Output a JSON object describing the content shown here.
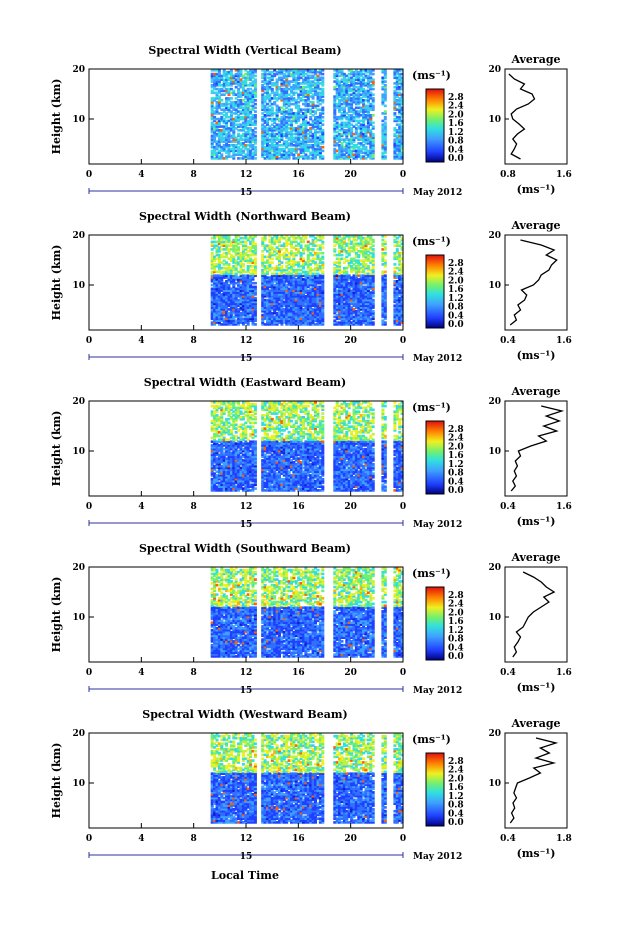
{
  "figure": {
    "xlabel": "Local Time",
    "date_label": "May 2012",
    "day_label": "15",
    "colorbar_unit": "(ms⁻¹)",
    "colorbar_ticks": [
      "0.0",
      "0.4",
      "0.8",
      "1.2",
      "1.6",
      "2.0",
      "2.4",
      "2.8"
    ],
    "avg_title": "Average",
    "avg_unit": "(ms⁻¹)",
    "y_ticks": [
      "10",
      "20"
    ],
    "x_ticks": [
      "0",
      "4",
      "8",
      "12",
      "16",
      "20",
      "0"
    ],
    "ylabel": "Height (km)"
  },
  "chart_data": [
    {
      "type": "heatmap",
      "title": "Spectral Width (Vertical Beam)",
      "ylabel": "Height (km)",
      "xlabel": "Local Time",
      "x_range": [
        0,
        24
      ],
      "y_range": [
        1,
        20
      ],
      "colorbar_range": [
        0.0,
        2.8
      ],
      "data_time_range": [
        9.3,
        24
      ],
      "gaps_hours": [
        [
          12.8,
          13.1
        ],
        [
          18.0,
          18.5
        ],
        [
          21.8,
          22.3
        ],
        [
          22.8,
          23.1
        ]
      ],
      "average_profile": {
        "xlim": [
          0.8,
          1.6
        ],
        "xticks": [
          "0.8",
          "1.6"
        ],
        "heights": [
          2,
          3,
          4,
          5,
          6,
          7,
          8,
          9,
          10,
          11,
          12,
          13,
          14,
          15,
          16,
          17,
          18,
          19
        ],
        "values": [
          1.0,
          0.88,
          0.92,
          0.95,
          0.9,
          0.96,
          1.05,
          0.98,
          0.9,
          0.88,
          0.95,
          1.1,
          1.18,
          1.15,
          1.0,
          1.05,
          0.92,
          0.85
        ]
      }
    },
    {
      "type": "heatmap",
      "title": "Spectral Width (Northward Beam)",
      "ylabel": "Height (km)",
      "xlabel": "Local Time",
      "x_range": [
        0,
        24
      ],
      "y_range": [
        1,
        20
      ],
      "colorbar_range": [
        0.0,
        2.8
      ],
      "data_time_range": [
        9.3,
        24
      ],
      "gaps_hours": [
        [
          12.8,
          13.1
        ],
        [
          18.0,
          18.5
        ],
        [
          21.8,
          22.3
        ],
        [
          22.8,
          23.1
        ]
      ],
      "average_profile": {
        "xlim": [
          0.4,
          1.6
        ],
        "xticks": [
          "0.4",
          "1.6"
        ],
        "heights": [
          2,
          3,
          4,
          5,
          6,
          7,
          8,
          9,
          10,
          11,
          12,
          13,
          14,
          15,
          16,
          17,
          18,
          19
        ],
        "values": [
          0.5,
          0.62,
          0.58,
          0.7,
          0.65,
          0.78,
          0.82,
          0.72,
          0.95,
          1.05,
          1.1,
          1.25,
          1.3,
          1.4,
          1.2,
          1.35,
          1.1,
          0.7
        ]
      }
    },
    {
      "type": "heatmap",
      "title": "Spectral Width (Eastward Beam)",
      "ylabel": "Height (km)",
      "xlabel": "Local Time",
      "x_range": [
        0,
        24
      ],
      "y_range": [
        1,
        20
      ],
      "colorbar_range": [
        0.0,
        2.8
      ],
      "data_time_range": [
        9.3,
        24
      ],
      "gaps_hours": [
        [
          12.8,
          13.1
        ],
        [
          18.0,
          18.5
        ],
        [
          21.8,
          22.3
        ],
        [
          22.8,
          23.1
        ]
      ],
      "average_profile": {
        "xlim": [
          0.4,
          1.6
        ],
        "xticks": [
          "0.4",
          "1.6"
        ],
        "heights": [
          2,
          3,
          4,
          5,
          6,
          7,
          8,
          9,
          10,
          11,
          12,
          13,
          14,
          15,
          16,
          17,
          18,
          19
        ],
        "values": [
          0.52,
          0.6,
          0.55,
          0.62,
          0.58,
          0.64,
          0.6,
          0.7,
          0.66,
          0.9,
          1.2,
          1.05,
          1.4,
          1.15,
          1.45,
          1.2,
          1.5,
          1.1
        ]
      }
    },
    {
      "type": "heatmap",
      "title": "Spectral Width (Southward Beam)",
      "ylabel": "Height (km)",
      "xlabel": "Local Time",
      "x_range": [
        0,
        24
      ],
      "y_range": [
        1,
        20
      ],
      "colorbar_range": [
        0.0,
        2.8
      ],
      "data_time_range": [
        9.3,
        24
      ],
      "gaps_hours": [
        [
          12.8,
          13.1
        ],
        [
          18.0,
          18.5
        ],
        [
          21.8,
          22.3
        ],
        [
          22.8,
          23.1
        ]
      ],
      "average_profile": {
        "xlim": [
          0.4,
          1.6
        ],
        "xticks": [
          "0.4",
          "1.6"
        ],
        "heights": [
          2,
          3,
          4,
          5,
          6,
          7,
          8,
          9,
          10,
          11,
          12,
          13,
          14,
          15,
          16,
          17,
          18,
          19
        ],
        "values": [
          0.55,
          0.62,
          0.58,
          0.65,
          0.7,
          0.62,
          0.75,
          0.8,
          0.85,
          0.95,
          1.1,
          1.25,
          1.15,
          1.35,
          1.2,
          1.1,
          0.95,
          0.75
        ]
      }
    },
    {
      "type": "heatmap",
      "title": "Spectral Width (Westward Beam)",
      "ylabel": "Height (km)",
      "xlabel": "Local Time",
      "x_range": [
        0,
        24
      ],
      "y_range": [
        1,
        20
      ],
      "colorbar_range": [
        0.0,
        2.8
      ],
      "data_time_range": [
        9.3,
        24
      ],
      "gaps_hours": [
        [
          12.8,
          13.1
        ],
        [
          18.0,
          18.5
        ],
        [
          21.8,
          22.3
        ],
        [
          22.8,
          23.1
        ]
      ],
      "average_profile": {
        "xlim": [
          0.4,
          1.8
        ],
        "xticks": [
          "0.4",
          "1.8"
        ],
        "heights": [
          2,
          3,
          4,
          5,
          6,
          7,
          8,
          9,
          10,
          11,
          12,
          13,
          14,
          15,
          16,
          17,
          18,
          19
        ],
        "values": [
          0.52,
          0.6,
          0.55,
          0.62,
          0.58,
          0.66,
          0.6,
          0.64,
          0.68,
          0.95,
          1.2,
          1.05,
          1.5,
          1.1,
          1.4,
          1.2,
          1.55,
          1.1
        ]
      }
    }
  ]
}
